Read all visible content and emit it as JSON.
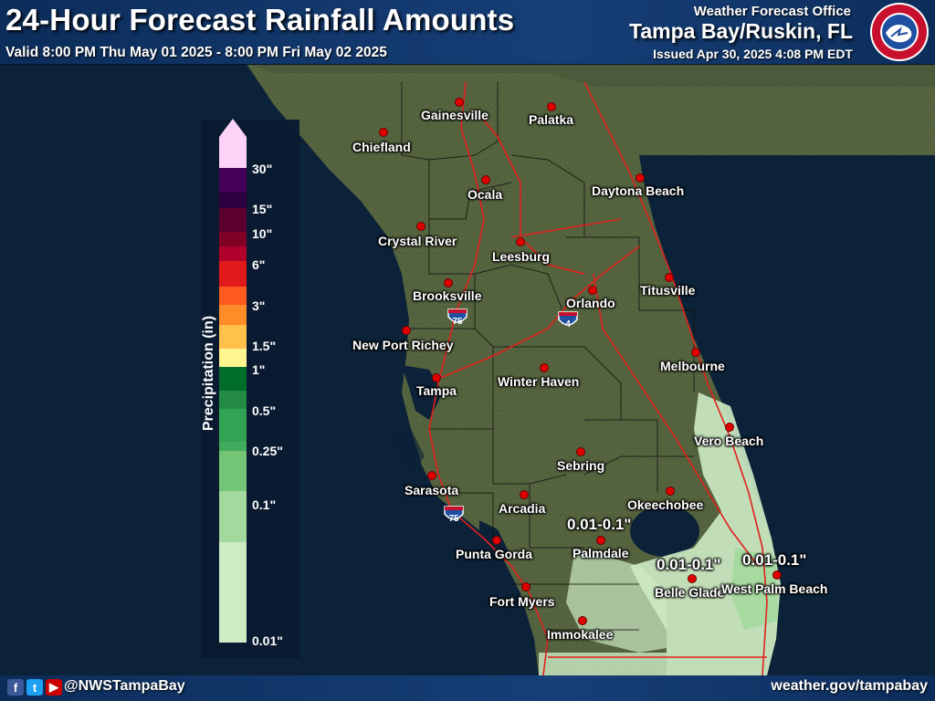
{
  "header": {
    "title": "24-Hour Forecast Rainfall Amounts",
    "valid": "Valid 8:00 PM Thu May 01 2025 - 8:00 PM Fri May 02 2025",
    "office_label": "Weather Forecast Office",
    "office_name": "Tampa Bay/Ruskin, FL",
    "issued": "Issued Apr 30, 2025 4:08 PM EDT",
    "logo_icon": "nws-logo-icon"
  },
  "footer": {
    "handle": "@NWSTampaBay",
    "website": "weather.gov/tampabay",
    "social_icons": [
      "facebook-icon",
      "twitter-icon",
      "youtube-icon"
    ]
  },
  "legend": {
    "title": "Precipitation (in)",
    "ticks": [
      "0.01\"",
      "0.1\"",
      "0.25\"",
      "0.5\"",
      "1\"",
      "1.5\"",
      "3\"",
      "6\"",
      "10\"",
      "15\"",
      "30\""
    ],
    "colors": {
      "0.01": "#cdebc5",
      "0.1": "#a4d99e",
      "0.25": "#74c476",
      "0.5": "#31a354",
      "1": "#006d2c",
      "1.5": "#fff68f",
      "2": "#ffc04c",
      "3": "#ff8c29",
      "4": "#ff5a1f",
      "6": "#e31a1c",
      "8": "#b0002b",
      "10": "#800026",
      "15": "#5c0030",
      "20": "#45005a",
      "30": "#2d0040",
      "max": "#fcd2f7"
    }
  },
  "cities": [
    {
      "name": "Gainesville"
    },
    {
      "name": "Palatka"
    },
    {
      "name": "Chiefland"
    },
    {
      "name": "Ocala"
    },
    {
      "name": "Daytona Beach"
    },
    {
      "name": "Crystal River"
    },
    {
      "name": "Leesburg"
    },
    {
      "name": "Brooksville"
    },
    {
      "name": "Orlando"
    },
    {
      "name": "Titusville"
    },
    {
      "name": "New Port Richey"
    },
    {
      "name": "Melbourne"
    },
    {
      "name": "Tampa"
    },
    {
      "name": "Winter Haven"
    },
    {
      "name": "Vero Beach"
    },
    {
      "name": "Sebring"
    },
    {
      "name": "Sarasota"
    },
    {
      "name": "Arcadia"
    },
    {
      "name": "Okeechobee"
    },
    {
      "name": "Palmdale"
    },
    {
      "name": "Punta Gorda"
    },
    {
      "name": "Belle Glade"
    },
    {
      "name": "West Palm Beach"
    },
    {
      "name": "Fort Myers"
    },
    {
      "name": "Immokalee"
    }
  ],
  "rain_labels": [
    "0.01-0.1\"",
    "0.01-0.1\"",
    "0.01-0.1\""
  ],
  "highways": {
    "i75": "75",
    "i4": "4"
  },
  "colors": {
    "water": "#0c2238",
    "land": "#4b5a3e",
    "road": "#e0201c",
    "county_line": "#111111",
    "header_bg": "#163f78"
  }
}
